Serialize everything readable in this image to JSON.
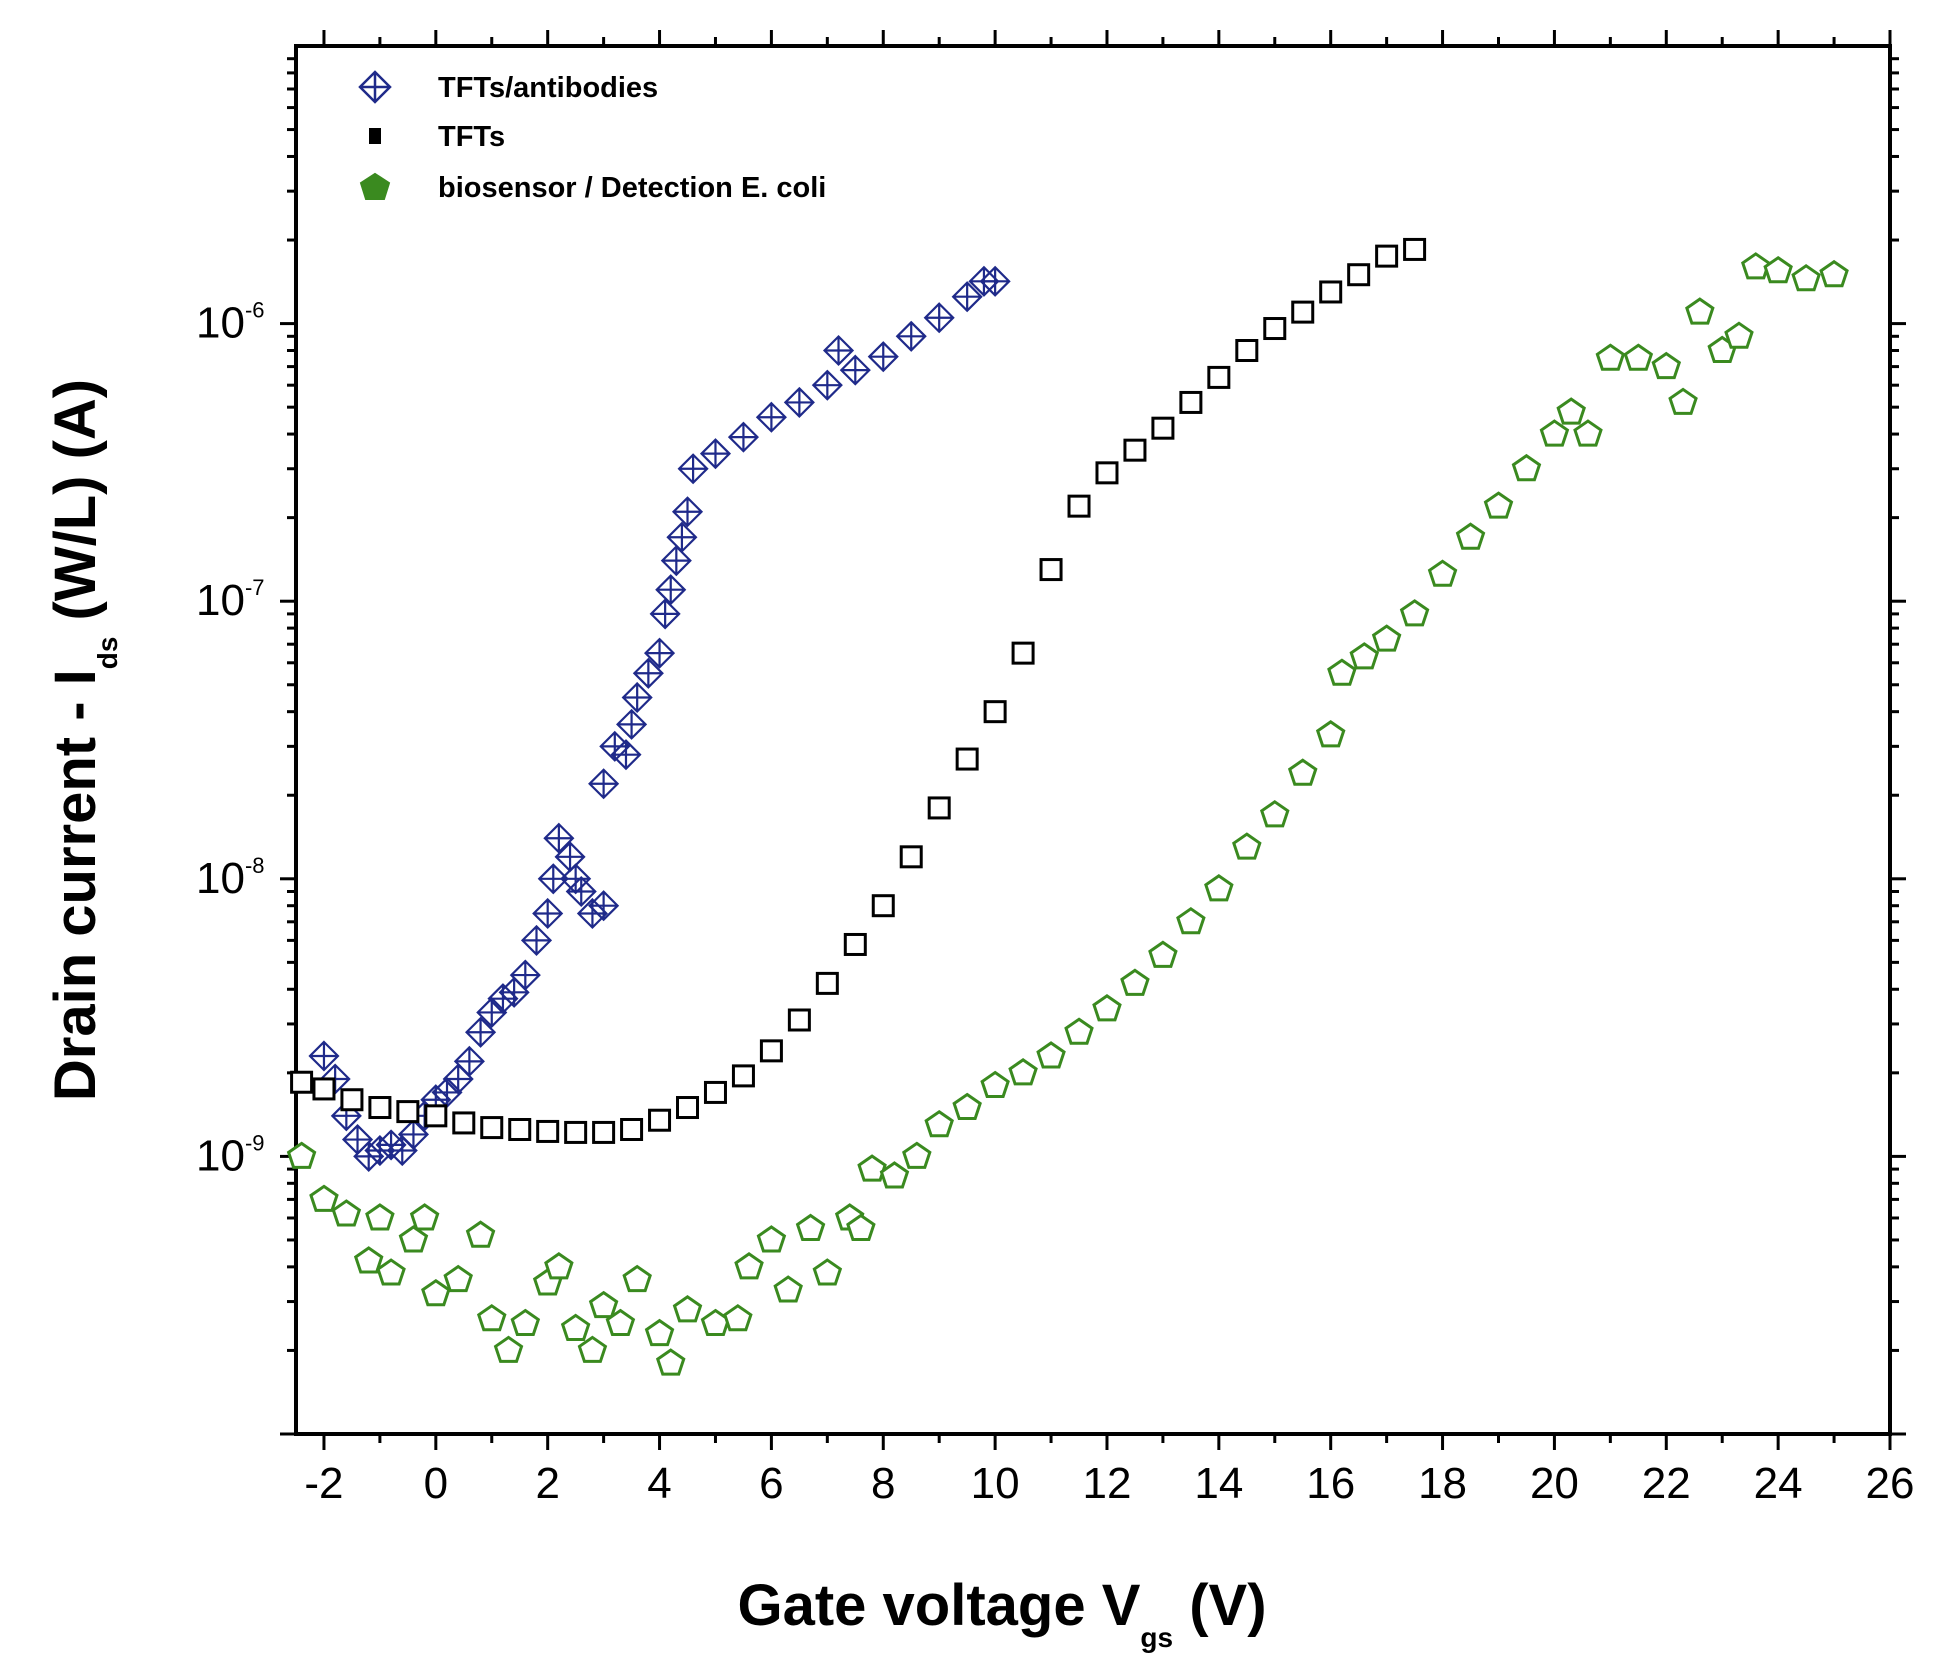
{
  "chart_data": {
    "type": "scatter",
    "x_scale": "linear",
    "y_scale": "log",
    "xlim": [
      -2.5,
      26
    ],
    "ylim": [
      1e-10,
      1e-05
    ],
    "xticks": [
      -2,
      0,
      2,
      4,
      6,
      8,
      10,
      12,
      14,
      16,
      18,
      20,
      22,
      24,
      26
    ],
    "xtick_labels": [
      "-2",
      "0",
      "2",
      "4",
      "6",
      "8",
      "10",
      "12",
      "14",
      "16",
      "18",
      "20",
      "22",
      "24",
      "26"
    ],
    "yticks": [
      {
        "value": 1e-09,
        "base": "10",
        "exp": "-9"
      },
      {
        "value": 1e-08,
        "base": "10",
        "exp": "-8"
      },
      {
        "value": 1e-07,
        "base": "10",
        "exp": "-7"
      },
      {
        "value": 1e-06,
        "base": "10",
        "exp": "-6"
      }
    ],
    "xlabel": {
      "main": "Gate voltage V",
      "sub": "gs",
      "unit": " (V)"
    },
    "ylabel": {
      "main": "Drain current - I",
      "sub": "ds",
      "unit": " (W/L) (A)"
    },
    "legend_position": "top-left",
    "series": [
      {
        "name": "TFTs/antibodies",
        "marker": "crossed-diamond",
        "color": "#1f2a8a",
        "points": [
          [
            -2.0,
            2.3e-09
          ],
          [
            -1.8,
            1.9e-09
          ],
          [
            -1.6,
            1.4e-09
          ],
          [
            -1.4,
            1.15e-09
          ],
          [
            -1.2,
            1e-09
          ],
          [
            -1.0,
            1.05e-09
          ],
          [
            -0.8,
            1.1e-09
          ],
          [
            -0.6,
            1.05e-09
          ],
          [
            -0.4,
            1.2e-09
          ],
          [
            -0.2,
            1.4e-09
          ],
          [
            0.0,
            1.6e-09
          ],
          [
            0.2,
            1.7e-09
          ],
          [
            0.4,
            1.9e-09
          ],
          [
            0.6,
            2.2e-09
          ],
          [
            0.8,
            2.8e-09
          ],
          [
            1.0,
            3.3e-09
          ],
          [
            1.2,
            3.7e-09
          ],
          [
            1.4,
            3.9e-09
          ],
          [
            1.6,
            4.5e-09
          ],
          [
            1.8,
            6e-09
          ],
          [
            2.0,
            7.5e-09
          ],
          [
            2.1,
            1e-08
          ],
          [
            2.2,
            1.4e-08
          ],
          [
            2.4,
            1.2e-08
          ],
          [
            2.5,
            1e-08
          ],
          [
            2.6,
            9e-09
          ],
          [
            2.8,
            7.5e-09
          ],
          [
            3.0,
            8e-09
          ],
          [
            3.0,
            2.2e-08
          ],
          [
            3.2,
            3e-08
          ],
          [
            3.4,
            2.8e-08
          ],
          [
            3.5,
            3.6e-08
          ],
          [
            3.6,
            4.5e-08
          ],
          [
            3.8,
            5.5e-08
          ],
          [
            4.0,
            6.5e-08
          ],
          [
            4.1,
            9e-08
          ],
          [
            4.2,
            1.1e-07
          ],
          [
            4.3,
            1.4e-07
          ],
          [
            4.4,
            1.7e-07
          ],
          [
            4.5,
            2.1e-07
          ],
          [
            4.6,
            3e-07
          ],
          [
            5.0,
            3.4e-07
          ],
          [
            5.5,
            3.9e-07
          ],
          [
            6.0,
            4.6e-07
          ],
          [
            6.5,
            5.2e-07
          ],
          [
            7.0,
            6e-07
          ],
          [
            7.2,
            8e-07
          ],
          [
            7.5,
            6.8e-07
          ],
          [
            8.0,
            7.6e-07
          ],
          [
            8.5,
            9e-07
          ],
          [
            9.0,
            1.05e-06
          ],
          [
            9.5,
            1.25e-06
          ],
          [
            9.8,
            1.42e-06
          ],
          [
            10.0,
            1.42e-06
          ]
        ]
      },
      {
        "name": "TFTs",
        "marker": "square",
        "color": "#000000",
        "points": [
          [
            -2.4,
            1.85e-09
          ],
          [
            -2.0,
            1.75e-09
          ],
          [
            -1.5,
            1.6e-09
          ],
          [
            -1.0,
            1.5e-09
          ],
          [
            -0.5,
            1.45e-09
          ],
          [
            0.0,
            1.4e-09
          ],
          [
            0.5,
            1.32e-09
          ],
          [
            1.0,
            1.27e-09
          ],
          [
            1.5,
            1.25e-09
          ],
          [
            2.0,
            1.23e-09
          ],
          [
            2.5,
            1.22e-09
          ],
          [
            3.0,
            1.22e-09
          ],
          [
            3.5,
            1.25e-09
          ],
          [
            4.0,
            1.35e-09
          ],
          [
            4.5,
            1.5e-09
          ],
          [
            5.0,
            1.7e-09
          ],
          [
            5.5,
            1.95e-09
          ],
          [
            6.0,
            2.4e-09
          ],
          [
            6.5,
            3.1e-09
          ],
          [
            7.0,
            4.2e-09
          ],
          [
            7.5,
            5.8e-09
          ],
          [
            8.0,
            8e-09
          ],
          [
            8.5,
            1.2e-08
          ],
          [
            9.0,
            1.8e-08
          ],
          [
            9.5,
            2.7e-08
          ],
          [
            10.0,
            4e-08
          ],
          [
            10.5,
            6.5e-08
          ],
          [
            11.0,
            1.3e-07
          ],
          [
            11.5,
            2.2e-07
          ],
          [
            12.0,
            2.9e-07
          ],
          [
            12.5,
            3.5e-07
          ],
          [
            13.0,
            4.2e-07
          ],
          [
            13.5,
            5.2e-07
          ],
          [
            14.0,
            6.4e-07
          ],
          [
            14.5,
            8e-07
          ],
          [
            15.0,
            9.6e-07
          ],
          [
            15.5,
            1.1e-06
          ],
          [
            16.0,
            1.3e-06
          ],
          [
            16.5,
            1.5e-06
          ],
          [
            17.0,
            1.75e-06
          ],
          [
            17.5,
            1.85e-06
          ]
        ]
      },
      {
        "name": "biosensor / Detection E. coli",
        "marker": "pentagon",
        "color": "#3a8a1f",
        "points": [
          [
            -2.4,
            1e-09
          ],
          [
            -2.0,
            7e-10
          ],
          [
            -1.6,
            6.2e-10
          ],
          [
            -1.2,
            4.2e-10
          ],
          [
            -1.0,
            6e-10
          ],
          [
            -0.8,
            3.8e-10
          ],
          [
            -0.4,
            5e-10
          ],
          [
            -0.2,
            6e-10
          ],
          [
            0.0,
            3.2e-10
          ],
          [
            0.4,
            3.6e-10
          ],
          [
            0.8,
            5.2e-10
          ],
          [
            1.0,
            2.6e-10
          ],
          [
            1.3,
            2e-10
          ],
          [
            1.6,
            2.5e-10
          ],
          [
            2.0,
            3.5e-10
          ],
          [
            2.2,
            4e-10
          ],
          [
            2.5,
            2.4e-10
          ],
          [
            2.8,
            2e-10
          ],
          [
            3.0,
            2.9e-10
          ],
          [
            3.3,
            2.5e-10
          ],
          [
            3.6,
            3.6e-10
          ],
          [
            4.0,
            2.3e-10
          ],
          [
            4.2,
            1.8e-10
          ],
          [
            4.5,
            2.8e-10
          ],
          [
            5.0,
            2.5e-10
          ],
          [
            5.4,
            2.6e-10
          ],
          [
            5.6,
            4e-10
          ],
          [
            6.0,
            5e-10
          ],
          [
            6.3,
            3.3e-10
          ],
          [
            6.7,
            5.5e-10
          ],
          [
            7.0,
            3.8e-10
          ],
          [
            7.4,
            6e-10
          ],
          [
            7.6,
            5.5e-10
          ],
          [
            7.8,
            9e-10
          ],
          [
            8.2,
            8.5e-10
          ],
          [
            8.6,
            1e-09
          ],
          [
            9.0,
            1.3e-09
          ],
          [
            9.5,
            1.5e-09
          ],
          [
            10.0,
            1.8e-09
          ],
          [
            10.5,
            2e-09
          ],
          [
            11.0,
            2.3e-09
          ],
          [
            11.5,
            2.8e-09
          ],
          [
            12.0,
            3.4e-09
          ],
          [
            12.5,
            4.2e-09
          ],
          [
            13.0,
            5.3e-09
          ],
          [
            13.5,
            7e-09
          ],
          [
            14.0,
            9.2e-09
          ],
          [
            14.5,
            1.3e-08
          ],
          [
            15.0,
            1.7e-08
          ],
          [
            15.5,
            2.4e-08
          ],
          [
            16.0,
            3.3e-08
          ],
          [
            16.2,
            5.5e-08
          ],
          [
            16.6,
            6.3e-08
          ],
          [
            17.0,
            7.3e-08
          ],
          [
            17.5,
            9e-08
          ],
          [
            18.0,
            1.25e-07
          ],
          [
            18.5,
            1.7e-07
          ],
          [
            19.0,
            2.2e-07
          ],
          [
            19.5,
            3e-07
          ],
          [
            20.0,
            4e-07
          ],
          [
            20.3,
            4.8e-07
          ],
          [
            20.6,
            4e-07
          ],
          [
            21.0,
            7.5e-07
          ],
          [
            21.5,
            7.5e-07
          ],
          [
            22.0,
            7e-07
          ],
          [
            22.3,
            5.2e-07
          ],
          [
            22.6,
            1.1e-06
          ],
          [
            23.0,
            8e-07
          ],
          [
            23.3,
            9e-07
          ],
          [
            23.6,
            1.6e-06
          ],
          [
            24.0,
            1.55e-06
          ],
          [
            24.5,
            1.45e-06
          ],
          [
            25.0,
            1.5e-06
          ]
        ]
      }
    ]
  }
}
